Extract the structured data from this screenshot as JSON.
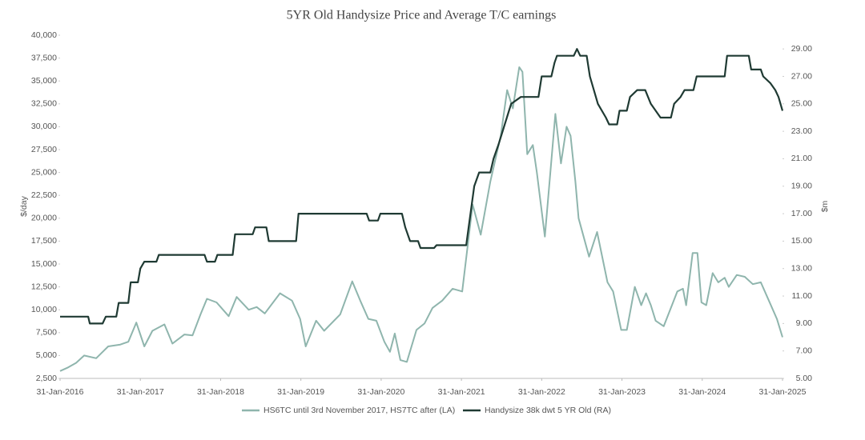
{
  "chart_data": {
    "type": "line",
    "title": "5YR Old Handysize Price and Average T/C earnings",
    "y_label": "$/day",
    "y2_label": "$m",
    "xlim": [
      2016.08,
      2025.08
    ],
    "xticks": [
      {
        "value": 2016.08,
        "label": "31-Jan-2016"
      },
      {
        "value": 2017.08,
        "label": "31-Jan-2017"
      },
      {
        "value": 2018.08,
        "label": "31-Jan-2018"
      },
      {
        "value": 2019.08,
        "label": "31-Jan-2019"
      },
      {
        "value": 2020.08,
        "label": "31-Jan-2020"
      },
      {
        "value": 2021.08,
        "label": "31-Jan-2021"
      },
      {
        "value": 2022.08,
        "label": "31-Jan-2022"
      },
      {
        "value": 2023.08,
        "label": "31-Jan-2023"
      },
      {
        "value": 2024.08,
        "label": "31-Jan-2024"
      },
      {
        "value": 2025.08,
        "label": "31-Jan-2025"
      }
    ],
    "ylim": [
      2500,
      40000
    ],
    "yticks": [
      {
        "value": 2500,
        "label": "2,500"
      },
      {
        "value": 5000,
        "label": "5,000"
      },
      {
        "value": 7500,
        "label": "7,500"
      },
      {
        "value": 10000,
        "label": "10,000"
      },
      {
        "value": 12500,
        "label": "12,500"
      },
      {
        "value": 15000,
        "label": "15,000"
      },
      {
        "value": 17500,
        "label": "17,500"
      },
      {
        "value": 20000,
        "label": "20,000"
      },
      {
        "value": 22500,
        "label": "22,500"
      },
      {
        "value": 25000,
        "label": "25,000"
      },
      {
        "value": 27500,
        "label": "27,500"
      },
      {
        "value": 30000,
        "label": "30,000"
      },
      {
        "value": 32500,
        "label": "32,500"
      },
      {
        "value": 35000,
        "label": "35,000"
      },
      {
        "value": 37500,
        "label": "37,500"
      },
      {
        "value": 40000,
        "label": "40,000"
      }
    ],
    "y2lim": [
      5,
      30
    ],
    "y2ticks": [
      {
        "value": 5,
        "label": "5.00"
      },
      {
        "value": 7,
        "label": "7.00"
      },
      {
        "value": 9,
        "label": "9.00"
      },
      {
        "value": 11,
        "label": "11.00"
      },
      {
        "value": 13,
        "label": "13.00"
      },
      {
        "value": 15,
        "label": "15.00"
      },
      {
        "value": 17,
        "label": "17.00"
      },
      {
        "value": 19,
        "label": "19.00"
      },
      {
        "value": 21,
        "label": "21.00"
      },
      {
        "value": 23,
        "label": "23.00"
      },
      {
        "value": 25,
        "label": "25.00"
      },
      {
        "value": 27,
        "label": "27.00"
      },
      {
        "value": 29,
        "label": "29.00"
      }
    ],
    "grid": false,
    "legend": "bottom",
    "series": [
      {
        "name": "HS6TC until 3rd November 2017, HS7TC after (LA)",
        "color": "#8fb5ad",
        "axis": "y",
        "x": [
          2016.08,
          2016.18,
          2016.28,
          2016.38,
          2016.53,
          2016.68,
          2016.83,
          2016.93,
          2017.03,
          2017.13,
          2017.23,
          2017.38,
          2017.48,
          2017.63,
          2017.73,
          2017.83,
          2017.91,
          2018.03,
          2018.18,
          2018.28,
          2018.43,
          2018.53,
          2018.63,
          2018.82,
          2018.97,
          2019.07,
          2019.14,
          2019.27,
          2019.37,
          2019.57,
          2019.72,
          2019.82,
          2019.92,
          2020.02,
          2020.12,
          2020.19,
          2020.25,
          2020.32,
          2020.4,
          2020.52,
          2020.62,
          2020.72,
          2020.84,
          2020.97,
          2021.09,
          2021.22,
          2021.32,
          2021.44,
          2021.57,
          2021.65,
          2021.72,
          2021.8,
          2021.84,
          2021.9,
          2021.97,
          2022.02,
          2022.12,
          2022.25,
          2022.32,
          2022.39,
          2022.44,
          2022.5,
          2022.54,
          2022.67,
          2022.77,
          2022.9,
          2022.97,
          2023.07,
          2023.14,
          2023.24,
          2023.32,
          2023.38,
          2023.44,
          2023.5,
          2023.6,
          2023.77,
          2023.84,
          2023.88,
          2023.96,
          2024.02,
          2024.07,
          2024.13,
          2024.21,
          2024.28,
          2024.36,
          2024.41,
          2024.51,
          2024.61,
          2024.71,
          2024.81,
          2024.91,
          2025.01,
          2025.08
        ],
        "values": [
          3300,
          3700,
          4200,
          5000,
          4700,
          6000,
          6200,
          6500,
          8600,
          6000,
          7700,
          8400,
          6300,
          7300,
          7200,
          9500,
          11200,
          10800,
          9300,
          11400,
          10000,
          10300,
          9600,
          11800,
          11000,
          9000,
          6000,
          8800,
          7700,
          9500,
          13100,
          11000,
          9000,
          8800,
          6500,
          5400,
          7400,
          4500,
          4300,
          7800,
          8500,
          10200,
          11000,
          12300,
          12000,
          21500,
          18200,
          24000,
          29000,
          34000,
          32000,
          36500,
          36000,
          27000,
          28000,
          25000,
          18000,
          31400,
          26000,
          30000,
          29000,
          24000,
          20000,
          15800,
          18500,
          13000,
          12000,
          7800,
          7800,
          12500,
          10500,
          11800,
          10500,
          8800,
          8200,
          12000,
          12300,
          10500,
          16200,
          16200,
          10800,
          10500,
          14000,
          13000,
          13500,
          12500,
          13800,
          13600,
          12800,
          13000,
          11000,
          9000,
          7000
        ]
      },
      {
        "name": "Handysize 38k dwt 5 YR Old (RA)",
        "color": "#1f3a33",
        "axis": "y2",
        "x": [
          2016.08,
          2016.43,
          2016.45,
          2016.61,
          2016.65,
          2016.78,
          2016.81,
          2016.93,
          2016.96,
          2017.05,
          2017.08,
          2017.13,
          2017.28,
          2017.31,
          2017.88,
          2017.91,
          2018.01,
          2018.04,
          2018.23,
          2018.26,
          2018.48,
          2018.51,
          2018.65,
          2018.68,
          2019.02,
          2019.05,
          2019.9,
          2019.93,
          2020.04,
          2020.07,
          2020.34,
          2020.38,
          2020.44,
          2020.54,
          2020.57,
          2020.74,
          2020.77,
          2021.14,
          2021.17,
          2021.24,
          2021.3,
          2021.44,
          2021.48,
          2021.54,
          2021.62,
          2021.7,
          2021.82,
          2022.04,
          2022.08,
          2022.2,
          2022.24,
          2022.27,
          2022.48,
          2022.52,
          2022.56,
          2022.64,
          2022.68,
          2022.78,
          2022.88,
          2022.92,
          2023.02,
          2023.05,
          2023.14,
          2023.18,
          2023.27,
          2023.37,
          2023.44,
          2023.56,
          2023.69,
          2023.73,
          2023.81,
          2023.86,
          2023.97,
          2024.01,
          2024.36,
          2024.39,
          2024.66,
          2024.69,
          2024.81,
          2024.84,
          2024.93,
          2024.99,
          2025.03,
          2025.08
        ],
        "values": [
          9.5,
          9.5,
          9.0,
          9.0,
          9.5,
          9.5,
          10.5,
          10.5,
          12.0,
          12.0,
          13.0,
          13.5,
          13.5,
          14.0,
          14.0,
          13.5,
          13.5,
          14.0,
          14.0,
          15.5,
          15.5,
          16.0,
          16.0,
          15.0,
          15.0,
          17.0,
          17.0,
          16.5,
          16.5,
          17.0,
          17.0,
          16.0,
          15.0,
          15.0,
          14.5,
          14.5,
          14.7,
          14.7,
          16.0,
          19.0,
          20.0,
          20.0,
          21.0,
          22.0,
          23.5,
          25.0,
          25.5,
          25.5,
          27.0,
          27.0,
          28.0,
          28.5,
          28.5,
          29.0,
          28.5,
          28.5,
          27.0,
          25.0,
          24.0,
          23.5,
          23.5,
          24.5,
          24.5,
          25.5,
          26.0,
          26.0,
          25.0,
          24.0,
          24.0,
          25.0,
          25.5,
          26.0,
          26.0,
          27.0,
          27.0,
          28.5,
          28.5,
          27.5,
          27.5,
          27.0,
          26.5,
          26.0,
          25.5,
          24.5
        ]
      }
    ]
  }
}
